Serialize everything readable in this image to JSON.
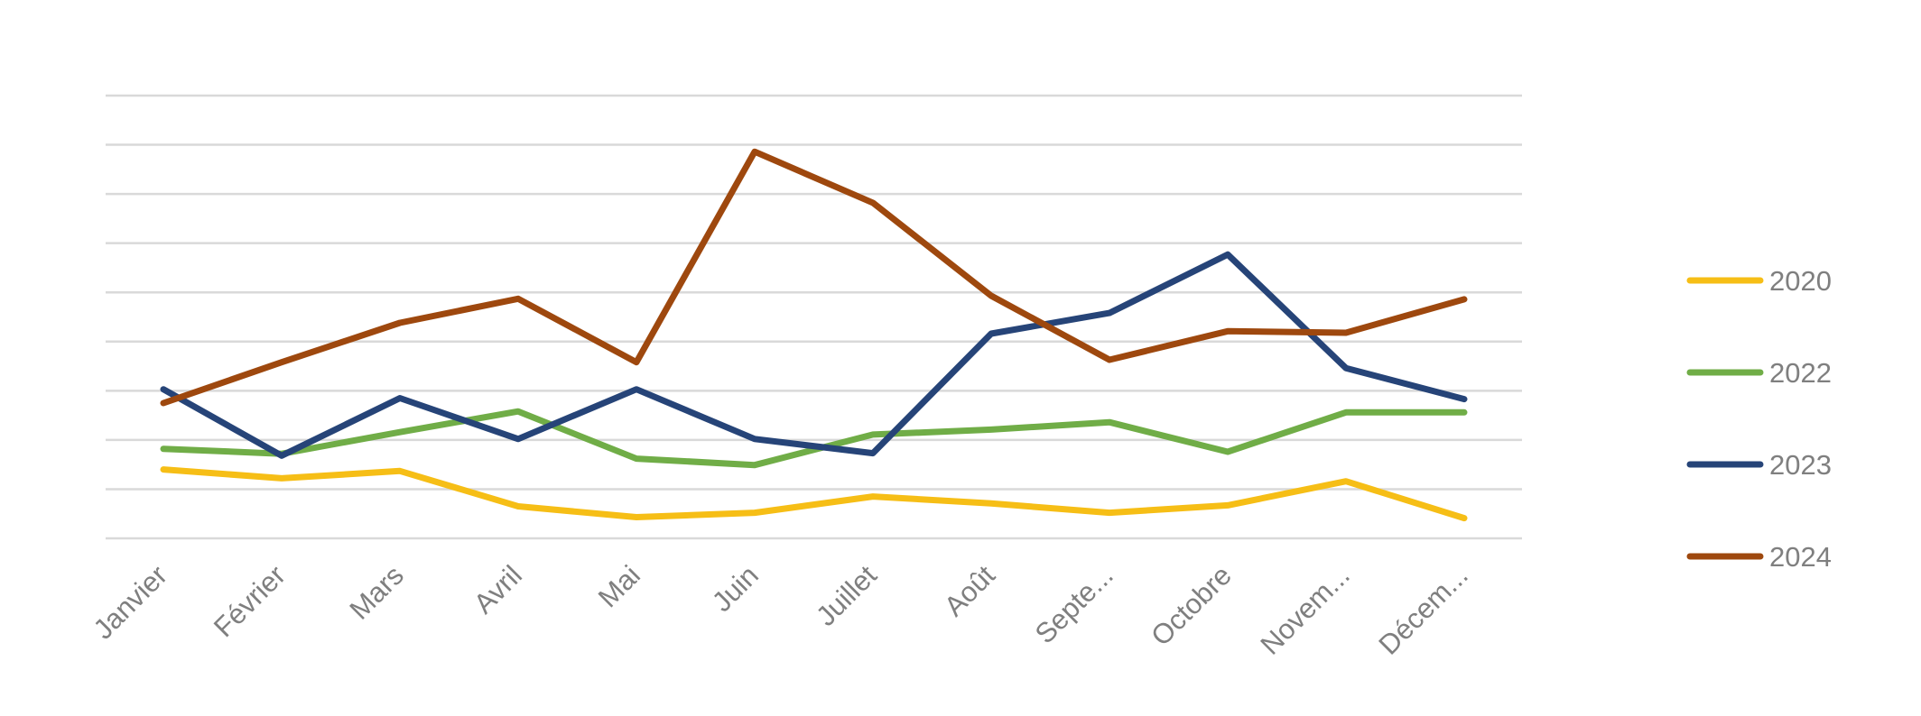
{
  "chart_data": {
    "type": "line",
    "categories": [
      "Janvier",
      "Février",
      "Mars",
      "Avril",
      "Mai",
      "Juin",
      "Juillet",
      "Août",
      "Septe...",
      "Octobre",
      "Novem...",
      "Décem..."
    ],
    "ylim": [
      0,
      9
    ],
    "grid": true,
    "legend_position": "right",
    "series": [
      {
        "name": "2020",
        "color": "#F6BE16",
        "values": [
          1.4,
          1.22,
          1.37,
          0.65,
          0.43,
          0.52,
          0.85,
          0.71,
          0.52,
          0.67,
          1.16,
          0.41
        ]
      },
      {
        "name": "2022",
        "color": "#70AD47",
        "values": [
          1.82,
          1.72,
          2.16,
          2.58,
          1.62,
          1.49,
          2.11,
          2.21,
          2.36,
          1.76,
          2.56,
          2.56
        ]
      },
      {
        "name": "2023",
        "color": "#264478",
        "values": [
          3.03,
          1.68,
          2.85,
          2.02,
          3.03,
          2.02,
          1.73,
          4.16,
          4.58,
          5.77,
          3.46,
          2.83
        ]
      },
      {
        "name": "2024",
        "color": "#9E480E",
        "values": [
          2.75,
          3.58,
          4.38,
          4.87,
          3.58,
          7.86,
          6.82,
          4.93,
          3.63,
          4.21,
          4.18,
          4.86
        ]
      }
    ]
  }
}
